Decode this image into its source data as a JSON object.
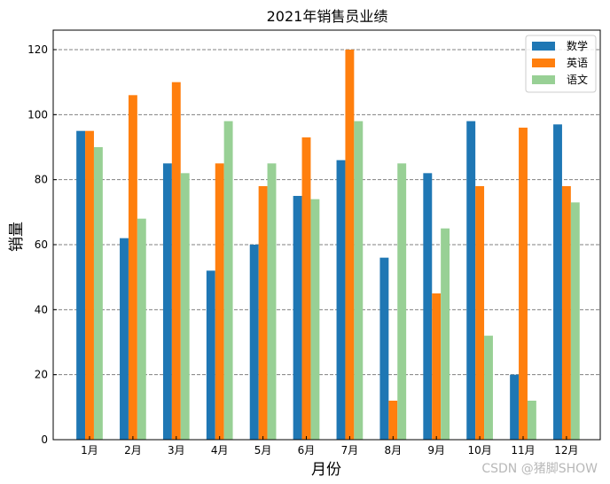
{
  "chart_data": {
    "type": "bar",
    "title": "2021年销售员业绩",
    "xlabel": "月份",
    "ylabel": "销量",
    "categories": [
      "1月",
      "2月",
      "3月",
      "4月",
      "5月",
      "6月",
      "7月",
      "8月",
      "9月",
      "10月",
      "11月",
      "12月"
    ],
    "series": [
      {
        "name": "数学",
        "color": "#1f77b4",
        "values": [
          95,
          62,
          85,
          52,
          60,
          75,
          86,
          56,
          82,
          98,
          20,
          97
        ]
      },
      {
        "name": "英语",
        "color": "#ff7f0e",
        "values": [
          95,
          106,
          110,
          85,
          78,
          93,
          120,
          12,
          45,
          78,
          96,
          78
        ]
      },
      {
        "name": "语文",
        "color": "#98d095",
        "values": [
          90,
          68,
          82,
          98,
          85,
          74,
          98,
          85,
          65,
          32,
          12,
          73
        ]
      }
    ],
    "ylim": [
      0,
      126
    ],
    "yticks": [
      0,
      20,
      40,
      60,
      80,
      100,
      120
    ],
    "grid": true,
    "legend_position": "top-right"
  },
  "watermark": "CSDN @猪脚SHOW"
}
